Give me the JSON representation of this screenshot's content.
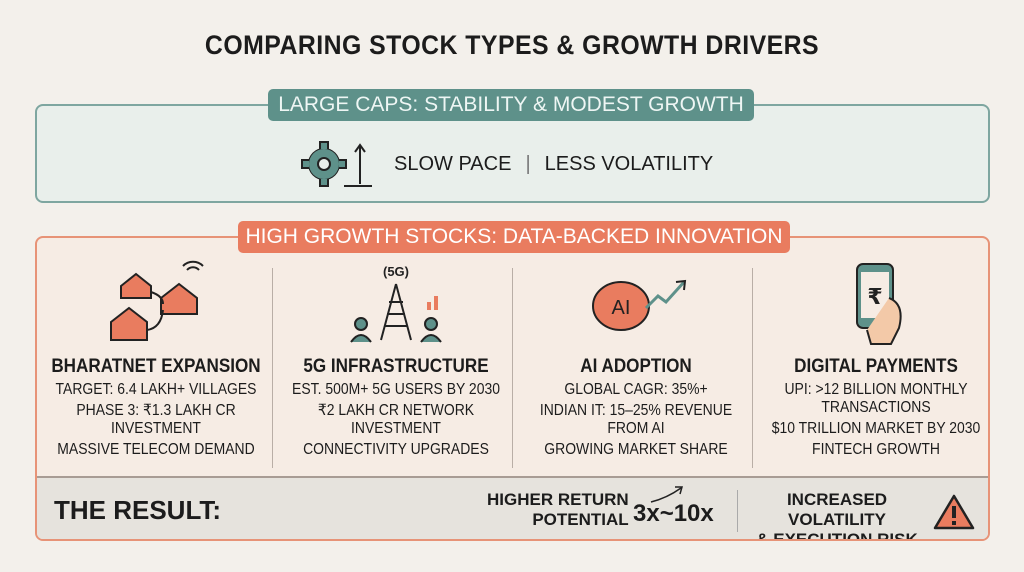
{
  "title": "COMPARING STOCK TYPES & GROWTH DRIVERS",
  "large_caps": {
    "tag": "LARGE CAPS: STABILITY & MODEST GROWTH",
    "pace": "SLOW PACE",
    "separator": "|",
    "volatility": "LESS VOLATILITY"
  },
  "high_growth": {
    "tag": "HIGH GROWTH STOCKS: DATA-BACKED INNOVATION",
    "columns": [
      {
        "heading": "BHARATNET EXPANSION",
        "lines": [
          "TARGET: 6.4 LAKH+ VILLAGES",
          "PHASE 3: ₹1.3 LAKH CR INVESTMENT",
          "MASSIVE TELECOM DEMAND"
        ]
      },
      {
        "heading": "5G INFRASTRUCTURE",
        "icon_label": "(5G)",
        "lines": [
          "EST. 500M+ 5G USERS BY 2030",
          "₹2 LAKH CR NETWORK INVESTMENT",
          "CONNECTIVITY UPGRADES"
        ]
      },
      {
        "heading": "AI ADOPTION",
        "icon_label": "AI",
        "lines": [
          "GLOBAL CAGR: 35%+",
          "INDIAN IT: 15–25% REVENUE FROM AI",
          "GROWING MARKET SHARE"
        ]
      },
      {
        "heading": "DIGITAL PAYMENTS",
        "icon_label": "₹",
        "lines": [
          "UPI: >12 BILLION MONTHLY TRANSACTIONS",
          "$10 TRILLION MARKET BY 2030",
          "FINTECH GROWTH"
        ]
      }
    ]
  },
  "result": {
    "label": "THE RESULT:",
    "return_line1": "HIGHER RETURN",
    "return_line2": "POTENTIAL",
    "multiple": "3x~10x",
    "risk_line1": "INCREASED VOLATILITY",
    "risk_line2": "& EXECUTION RISK"
  },
  "colors": {
    "teal": "#5e918a",
    "orange": "#e97c5f",
    "background": "#f3f0eb"
  }
}
